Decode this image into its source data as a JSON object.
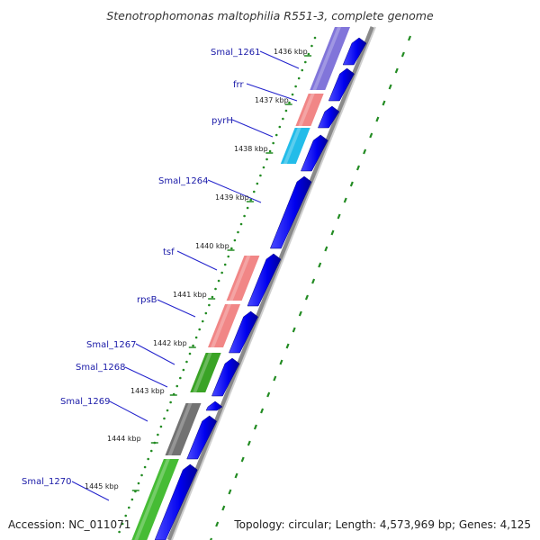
{
  "title": "Stenotrophomonas maltophilia R551-3, complete genome",
  "accession": "Accession: NC_011071",
  "summary": "Topology: circular; Length: 4,573,969 bp; Genes: 4,125",
  "colors": {
    "forward_cds": "#0000ee",
    "gene_label": "#1a1aa8",
    "tick_dots": "#228b22",
    "backbone": "#7f7f7f"
  },
  "scale_ticks": [
    {
      "label": "1436 kbp"
    },
    {
      "label": "1437 kbp"
    },
    {
      "label": "1438 kbp"
    },
    {
      "label": "1439 kbp"
    },
    {
      "label": "1440 kbp"
    },
    {
      "label": "1441 kbp"
    },
    {
      "label": "1442 kbp"
    },
    {
      "label": "1443 kbp"
    },
    {
      "label": "1444 kbp"
    },
    {
      "label": "1445 kbp"
    }
  ],
  "gene_labels": [
    {
      "name": "Smal_1261"
    },
    {
      "name": "frr"
    },
    {
      "name": "pyrH"
    },
    {
      "name": "Smal_1264"
    },
    {
      "name": "tsf"
    },
    {
      "name": "rpsB"
    },
    {
      "name": "Smal_1267"
    },
    {
      "name": "Smal_1268"
    },
    {
      "name": "Smal_1269"
    },
    {
      "name": "Smal_1270"
    }
  ],
  "category_features": [
    {
      "color": "#7a6ed8",
      "icon": "purple-feature"
    },
    {
      "color": "#f08080",
      "icon": "salmon-feature"
    },
    {
      "color": "#17b8e8",
      "icon": "cyan-feature"
    },
    {
      "color": "#f08080",
      "icon": "salmon-feature"
    },
    {
      "color": "#f08080",
      "icon": "salmon-feature"
    },
    {
      "color": "#2f9e1a",
      "icon": "green-feature"
    },
    {
      "color": "#6a6a6a",
      "icon": "gray-feature"
    },
    {
      "color": "#3cb82a",
      "icon": "lightgreen-feature"
    }
  ]
}
